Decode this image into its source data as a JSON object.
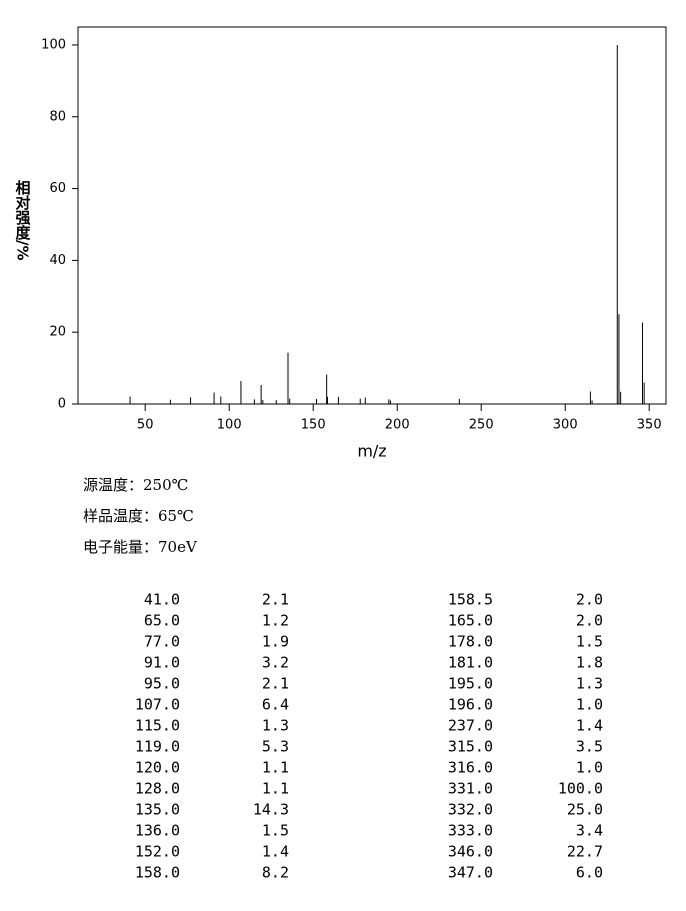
{
  "chart_data": {
    "type": "stem",
    "xlabel": "m/z",
    "ylabel": "相对强度/%",
    "xlim": [
      10,
      360
    ],
    "xticks": [
      50,
      100,
      150,
      200,
      250,
      300,
      350
    ],
    "ylim": [
      0,
      105
    ],
    "yticks": [
      0,
      20,
      40,
      60,
      80,
      100
    ],
    "color": "#000000",
    "x": [
      41,
      65,
      77,
      91,
      95,
      107,
      115,
      119,
      120,
      128,
      135,
      136,
      152,
      158,
      158.5,
      165,
      178,
      181,
      195,
      196,
      237,
      315,
      316,
      331,
      332,
      333,
      346,
      347
    ],
    "x_labels": [
      "41.0",
      "65.0",
      "77.0",
      "91.0",
      "95.0",
      "107.0",
      "115.0",
      "119.0",
      "120.0",
      "128.0",
      "135.0",
      "136.0",
      "152.0",
      "158.0",
      "158.5",
      "165.0",
      "178.0",
      "181.0",
      "195.0",
      "196.0",
      "237.0",
      "315.0",
      "316.0",
      "331.0",
      "332.0",
      "333.0",
      "346.0",
      "347.0"
    ],
    "values": [
      2.1,
      1.2,
      1.9,
      3.2,
      2.1,
      6.4,
      1.3,
      5.3,
      1.1,
      1.1,
      14.3,
      1.5,
      1.4,
      8.2,
      2.0,
      2.0,
      1.5,
      1.8,
      1.3,
      1.0,
      1.4,
      3.5,
      1.0,
      100,
      25,
      3.4,
      22.7,
      6.0
    ],
    "value_labels": [
      "2.1",
      "1.2",
      "1.9",
      "3.2",
      "2.1",
      "6.4",
      "1.3",
      "5.3",
      "1.1",
      "1.1",
      "14.3",
      "1.5",
      "1.4",
      "8.2",
      "2.0",
      "2.0",
      "1.5",
      "1.8",
      "1.3",
      "1.0",
      "1.4",
      "3.5",
      "1.0",
      "100.0",
      "25.0",
      "3.4",
      "22.7",
      "6.0"
    ]
  },
  "info": [
    "源温度：250℃",
    "样品温度：65℃",
    "电子能量：70eV"
  ]
}
